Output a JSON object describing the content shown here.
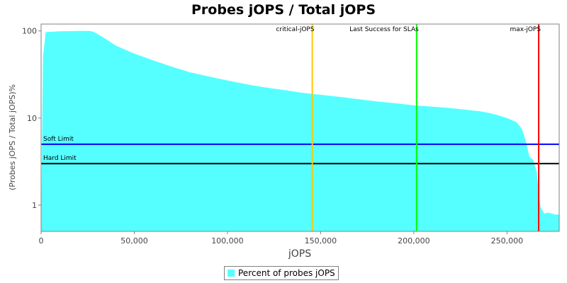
{
  "chart_data": {
    "type": "area",
    "title": "Probes jOPS / Total jOPS",
    "xlabel": "jOPS",
    "ylabel": "(Probes jOPS / Total jOPS)%",
    "xlim": [
      0,
      278000
    ],
    "ylim": [
      0.5,
      120
    ],
    "yscale": "log",
    "grid": false,
    "x_ticks": [
      0,
      50000,
      100000,
      150000,
      200000,
      250000
    ],
    "x_tick_labels": [
      "0",
      "50,000",
      "100,000",
      "150,000",
      "200,000",
      "250,000"
    ],
    "y_ticks": [
      1,
      10,
      100
    ],
    "y_tick_labels": [
      "1",
      "10",
      "100"
    ],
    "series": [
      {
        "name": "Percent of probes jOPS",
        "color": "#55ffff",
        "x": [
          0,
          1000,
          2500,
          10000,
          20000,
          26000,
          28000,
          30000,
          35000,
          40000,
          50000,
          60000,
          70000,
          80000,
          90000,
          100000,
          110000,
          120000,
          130000,
          140000,
          150000,
          160000,
          170000,
          180000,
          190000,
          200000,
          210000,
          220000,
          230000,
          235000,
          240000,
          245000,
          250000,
          255000,
          258000,
          260000,
          262000,
          264000,
          266000,
          267000,
          268000,
          270000,
          272000,
          274000,
          276000,
          278000
        ],
        "values": [
          0.5,
          50,
          97,
          99,
          100,
          100,
          98,
          93,
          80,
          68,
          55,
          46,
          39,
          33.5,
          30,
          27,
          24.5,
          22.5,
          21,
          19.5,
          18.5,
          17.5,
          16.5,
          15.5,
          14.8,
          14,
          13.5,
          13,
          12.3,
          12,
          11.5,
          10.8,
          10,
          9,
          7.5,
          5.5,
          3.6,
          3.3,
          2.4,
          1.3,
          0.95,
          0.8,
          0.82,
          0.8,
          0.78,
          0.78
        ]
      }
    ],
    "vertical_markers": [
      {
        "label": "critical-jOPS",
        "x": 145500,
        "color": "#ffc800"
      },
      {
        "label": "Last Success for SLAs",
        "x": 201500,
        "color": "#00ff00"
      },
      {
        "label": "max-jOPS",
        "x": 267000,
        "color": "#ff0000"
      }
    ],
    "horizontal_markers": [
      {
        "label": "Soft Limit",
        "y": 5,
        "color": "#0000ff"
      },
      {
        "label": "Hard Limit",
        "y": 3,
        "color": "#000000"
      }
    ],
    "legend": {
      "position": "bottom-center",
      "label": "Percent of probes jOPS"
    }
  }
}
